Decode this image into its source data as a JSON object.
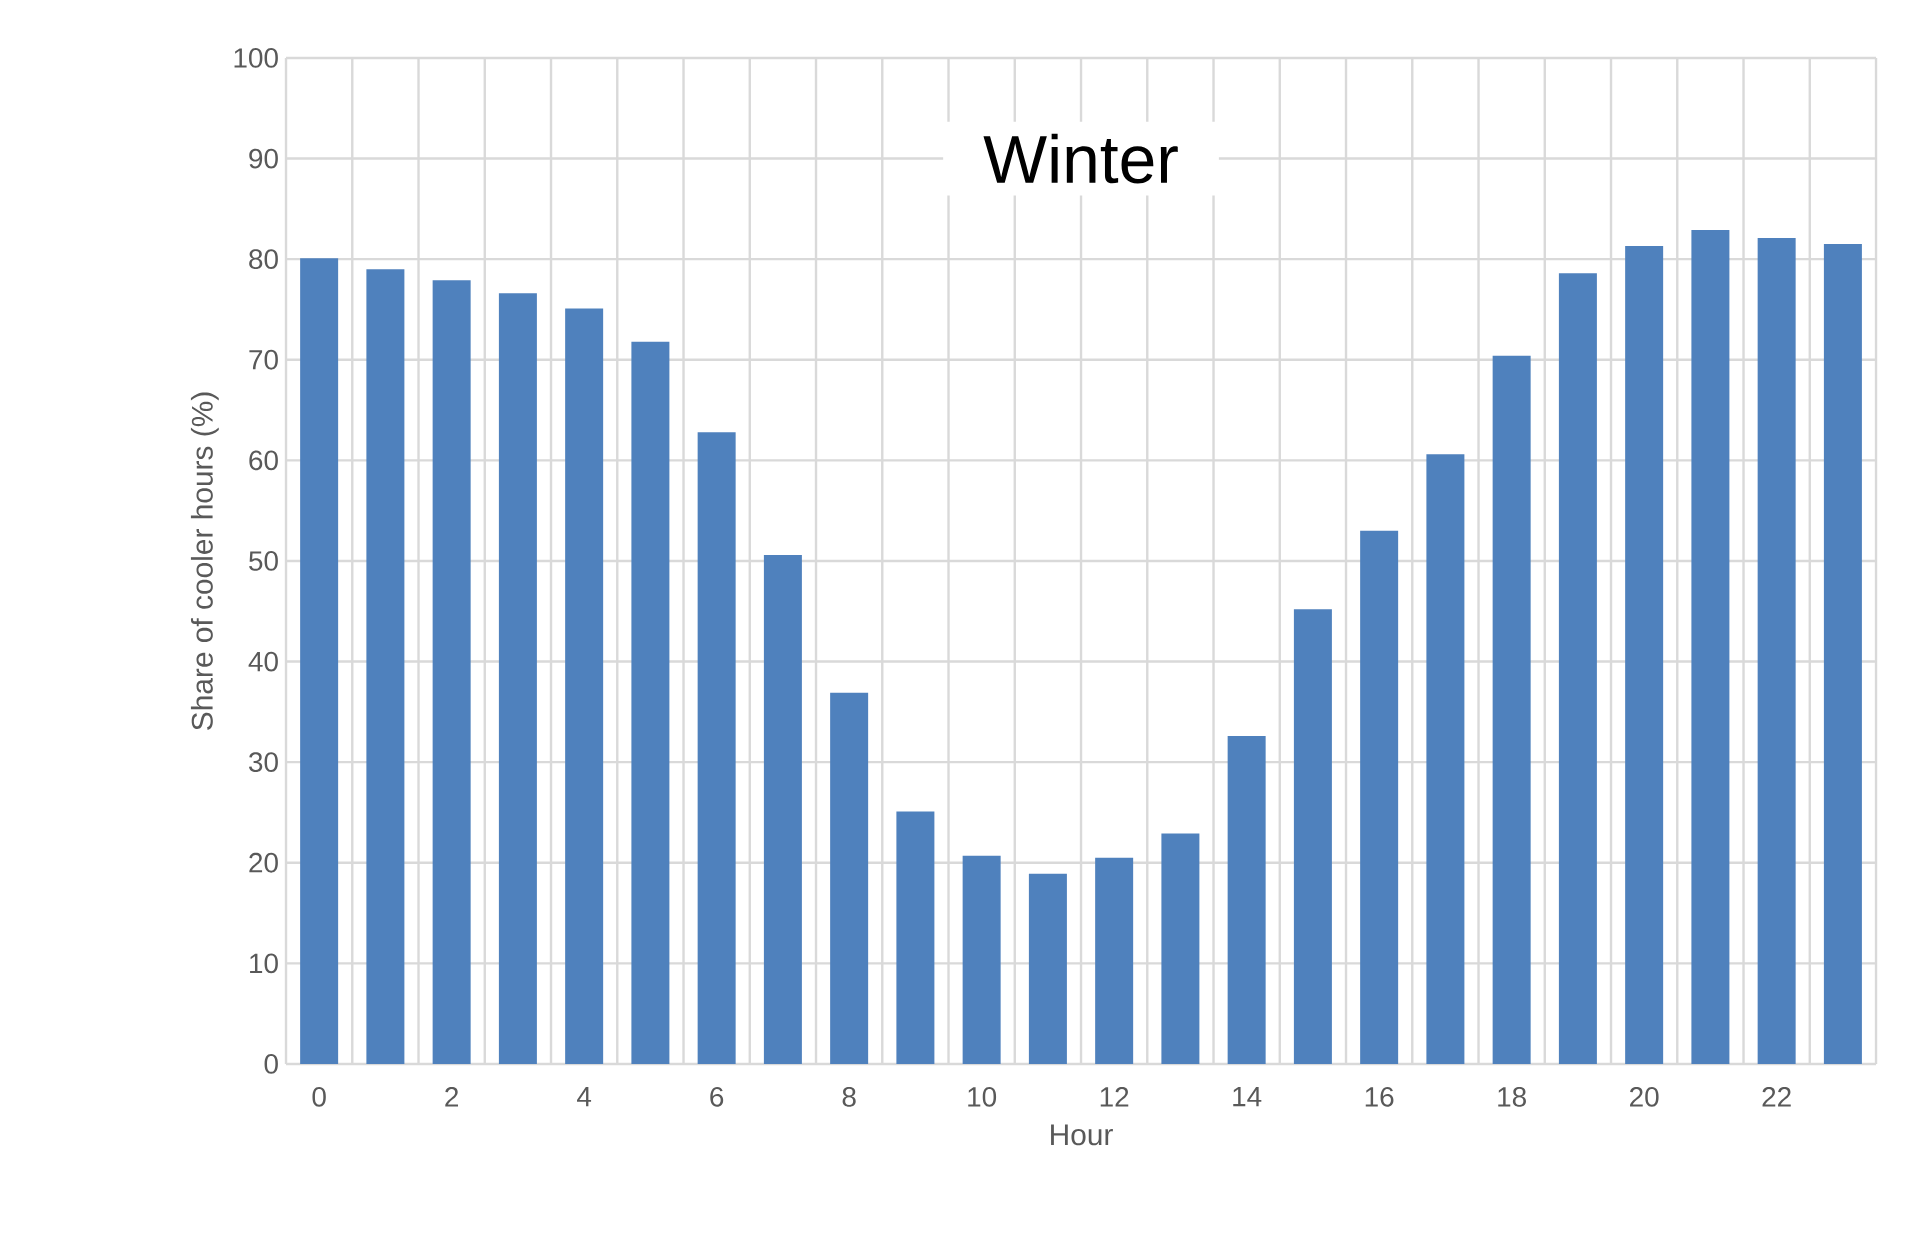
{
  "chart_data": {
    "type": "bar",
    "title": "Winter",
    "xlabel": "Hour",
    "ylabel": "Share of cooler hours (%)",
    "categories": [
      "0",
      null,
      "2",
      null,
      "4",
      null,
      "6",
      null,
      "8",
      null,
      "10",
      null,
      "12",
      null,
      "14",
      null,
      "16",
      null,
      "18",
      null,
      "20",
      null,
      "22",
      null
    ],
    "values": [
      80.1,
      79.0,
      77.9,
      76.6,
      75.1,
      71.8,
      62.8,
      50.6,
      36.9,
      25.1,
      20.7,
      18.9,
      20.5,
      22.9,
      32.6,
      45.2,
      53.0,
      60.6,
      70.4,
      78.6,
      81.3,
      82.9,
      82.1,
      81.5
    ],
    "color": "#4f81bd",
    "ylim": [
      0,
      100
    ],
    "yticks": [
      0,
      10,
      20,
      30,
      40,
      50,
      60,
      70,
      80,
      90,
      100
    ],
    "grid": true
  }
}
